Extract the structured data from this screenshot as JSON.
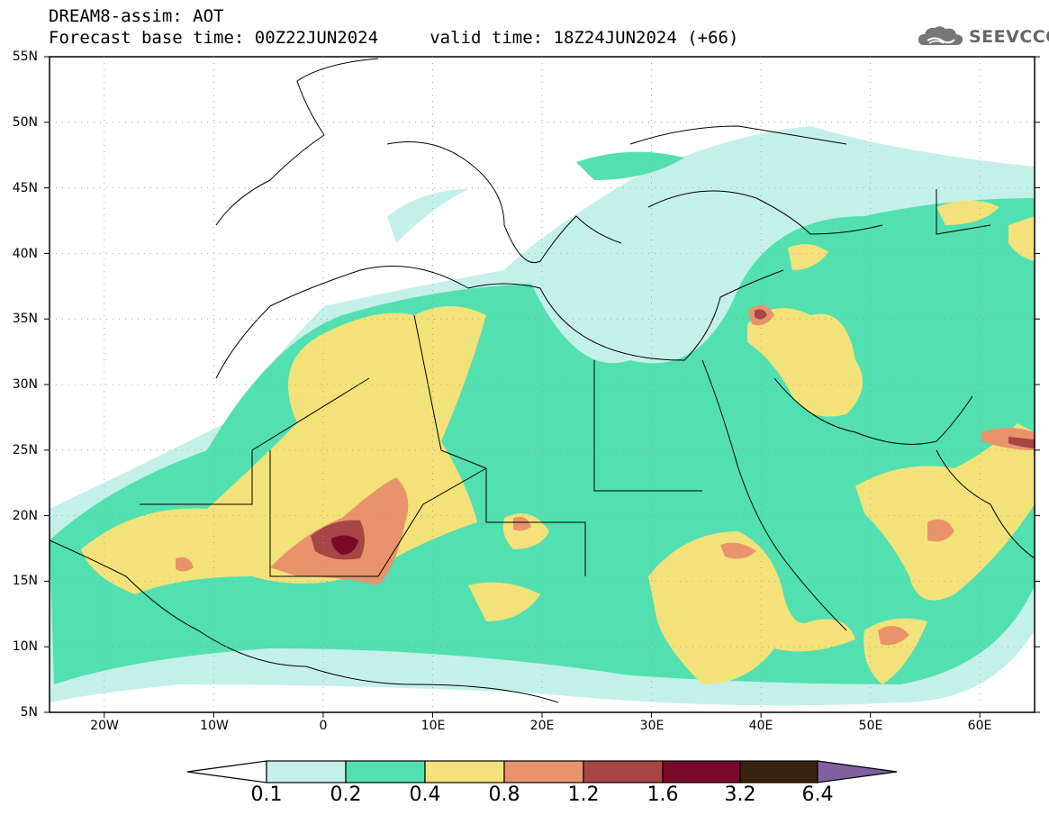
{
  "header": {
    "title_line1": "DREAM8-assim: AOT",
    "title_line2": "Forecast base time: 00Z22JUN2024     valid time: 18Z24JUN2024 (+66)"
  },
  "logo": {
    "text": "SEEVCCC",
    "icon": "cloud-icon"
  },
  "map": {
    "lat_labels": [
      "55N",
      "50N",
      "45N",
      "40N",
      "35N",
      "30N",
      "25N",
      "20N",
      "15N",
      "10N",
      "5N"
    ],
    "lon_labels": [
      "20W",
      "10W",
      "0",
      "10E",
      "20E",
      "30E",
      "40E",
      "50E",
      "60E"
    ],
    "extent": {
      "lon_min": -25,
      "lon_max": 65,
      "lat_min": 5,
      "lat_max": 55
    }
  },
  "colorbar": {
    "colors": [
      "#c4f0ea",
      "#52e0b0",
      "#f3e279",
      "#e8936b",
      "#a84545",
      "#7a0a2a",
      "#3a2210",
      "#8060a0"
    ],
    "under_color": "#ffffff",
    "labels": [
      "0.1",
      "0.2",
      "0.4",
      "0.8",
      "1.2",
      "1.6",
      "3.2",
      "6.4"
    ]
  }
}
